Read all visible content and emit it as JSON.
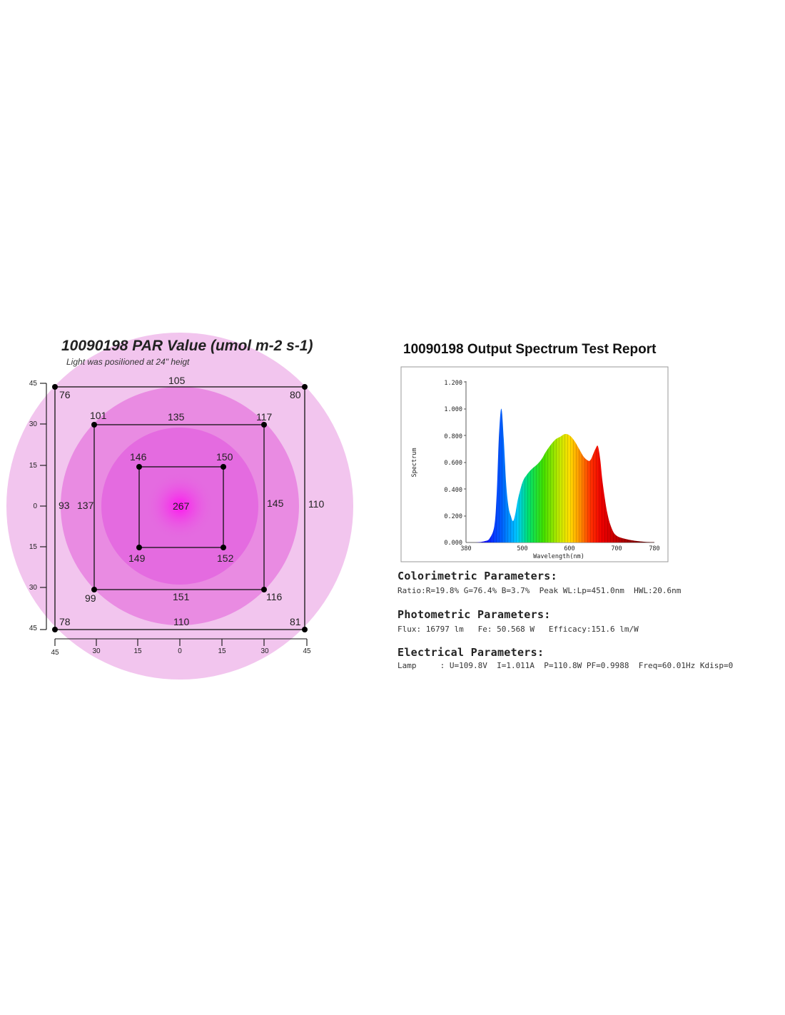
{
  "par": {
    "title": "10090198 PAR Value (umol m-2 s-1)",
    "subtitle": "Light was posiIioned at 24\" heigt",
    "center_value": "267",
    "inner": {
      "tl": "146",
      "tr": "150",
      "bl": "149",
      "br": "152"
    },
    "middle": {
      "tl": "101",
      "top": "135",
      "tr": "117",
      "left": "137",
      "right": "145",
      "bl": "99",
      "bottom": "151",
      "br": "116"
    },
    "outer": {
      "tl": "76",
      "top": "105",
      "tr": "80",
      "left": "93",
      "right": "110",
      "bl": "78",
      "bottom": "110",
      "br": "81"
    },
    "y_ticks": [
      "45",
      "30",
      "15",
      "0",
      "15",
      "30",
      "45"
    ],
    "x_ticks": [
      "45",
      "30",
      "15",
      "0",
      "15",
      "30",
      "45"
    ],
    "colors": {
      "outer_ring": "#f2c5ee",
      "middle_ring": "#e98be2",
      "inner_ring": "#e46be0",
      "center": "#ff14f0"
    }
  },
  "spectrum": {
    "title": "10090198 Output Spectrum Test Report",
    "ylabel": "Spectrum",
    "xlabel": "Wavelength(nm)",
    "y_ticks": [
      "1.200",
      "1.000",
      "0.800",
      "0.600",
      "0.400",
      "0.200",
      "0.000"
    ],
    "x_ticks": [
      "380",
      "500",
      "600",
      "700",
      "780"
    ]
  },
  "chart_data": {
    "type": "area",
    "xlabel": "Wavelength(nm)",
    "ylabel": "Spectrum",
    "xlim": [
      380,
      780
    ],
    "ylim": [
      0,
      1.2
    ],
    "x": [
      380,
      400,
      420,
      430,
      440,
      445,
      450,
      455,
      460,
      465,
      470,
      475,
      480,
      485,
      490,
      500,
      510,
      520,
      530,
      540,
      550,
      560,
      570,
      580,
      590,
      600,
      610,
      620,
      630,
      640,
      645,
      650,
      655,
      660,
      665,
      670,
      680,
      690,
      700,
      720,
      740,
      760,
      780
    ],
    "y": [
      0,
      0,
      0.01,
      0.03,
      0.12,
      0.35,
      0.8,
      1.0,
      0.78,
      0.45,
      0.27,
      0.2,
      0.16,
      0.22,
      0.32,
      0.45,
      0.51,
      0.55,
      0.58,
      0.62,
      0.68,
      0.73,
      0.77,
      0.79,
      0.81,
      0.8,
      0.76,
      0.7,
      0.64,
      0.61,
      0.62,
      0.66,
      0.7,
      0.72,
      0.62,
      0.45,
      0.22,
      0.1,
      0.05,
      0.025,
      0.012,
      0.005,
      0.002
    ]
  },
  "colorimetric": {
    "heading": "Colorimetric Parameters:",
    "line": "Ratio:R=19.8% G=76.4% B=3.7%  Peak WL:Lp=451.0nm  HWL:20.6nm"
  },
  "photometric": {
    "heading": "Photometric Parameters:",
    "line": "Flux: 16797 lm   Fe: 50.568 W   Efficacy:151.6 lm/W"
  },
  "electrical": {
    "heading": "Electrical Parameters:",
    "line": "Lamp     : U=109.8V  I=1.011A  P=110.8W PF=0.9988  Freq=60.01Hz Kdisp=0"
  }
}
